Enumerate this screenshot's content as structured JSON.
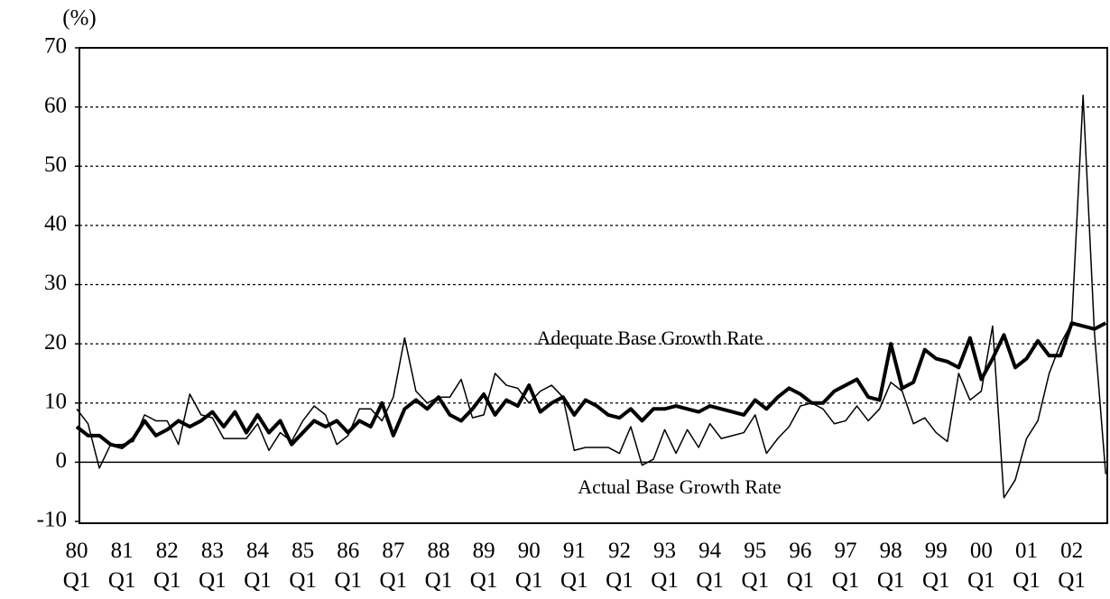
{
  "chart_data": {
    "type": "line",
    "y_unit": "(%)",
    "annotations": [
      "Adequate Base Growth Rate",
      "Actual Base Growth Rate"
    ],
    "categories": [
      "80\nQ1",
      null,
      null,
      null,
      "81\nQ1",
      null,
      null,
      null,
      "82\nQ1",
      null,
      null,
      null,
      "83\nQ1",
      null,
      null,
      null,
      "84\nQ1",
      null,
      null,
      null,
      "85\nQ1",
      null,
      null,
      null,
      "86\nQ1",
      null,
      null,
      null,
      "87\nQ1",
      null,
      null,
      null,
      "88\nQ1",
      null,
      null,
      null,
      "89\nQ1",
      null,
      null,
      null,
      "90\nQ1",
      null,
      null,
      null,
      "91\nQ1",
      null,
      null,
      null,
      "92\nQ1",
      null,
      null,
      null,
      "93\nQ1",
      null,
      null,
      null,
      "94\nQ1",
      null,
      null,
      null,
      "95\nQ1",
      null,
      null,
      null,
      "96\nQ1",
      null,
      null,
      null,
      "97\nQ1",
      null,
      null,
      null,
      "98\nQ1",
      null,
      null,
      null,
      "99\nQ1",
      null,
      null,
      null,
      "00\nQ1",
      null,
      null,
      null,
      "01\nQ1",
      null,
      null,
      null,
      "02\nQ1",
      null,
      null,
      null
    ],
    "series": [
      {
        "color": "#000000",
        "line_width": 4,
        "values": [
          6,
          4.5,
          4.5,
          3,
          2.5,
          4,
          7,
          4.5,
          5.5,
          7,
          6,
          7,
          8.5,
          6,
          8.5,
          5,
          8,
          5,
          7,
          3,
          5,
          7,
          6,
          7,
          5,
          7,
          6,
          10,
          4.5,
          9,
          10.5,
          9,
          11,
          8,
          7,
          9,
          11.5,
          8,
          10.5,
          9.5,
          13,
          8.5,
          10,
          11,
          8,
          10.5,
          9.5,
          8,
          7.5,
          9,
          7,
          9,
          9,
          9.5,
          9,
          8.5,
          9.5,
          9,
          8.5,
          8,
          10.5,
          9,
          11,
          12.5,
          11.5,
          10,
          10,
          12,
          13,
          14,
          11,
          10.5,
          20,
          12.5,
          13.5,
          19,
          17.5,
          17,
          16,
          21,
          14,
          17.5,
          21.5,
          16,
          17.5,
          20.5,
          18,
          18,
          23.5,
          23,
          22.5,
          23.5
        ]
      },
      {
        "color": "#000000",
        "line_width": 1.5,
        "values": [
          9,
          6.5,
          -1,
          3,
          3,
          3.5,
          8,
          7,
          7,
          3,
          11.5,
          8,
          7.5,
          4,
          4,
          4,
          6.5,
          2,
          5,
          3.5,
          7,
          9.5,
          8,
          3,
          4.5,
          9,
          9,
          7,
          11,
          21,
          12,
          10,
          11,
          11,
          14,
          7.5,
          8,
          15,
          13,
          12.5,
          10,
          12,
          13,
          11,
          2,
          2.5,
          2.5,
          2.5,
          1.5,
          6,
          -0.5,
          0.5,
          5.5,
          1.5,
          5.5,
          2.5,
          6.5,
          4,
          4.5,
          5,
          8,
          1.5,
          4,
          6,
          9.5,
          10,
          9,
          6.5,
          7,
          9.5,
          7,
          9,
          13.5,
          12,
          6.5,
          7.5,
          5,
          3.5,
          15,
          10.5,
          12,
          23,
          -6,
          -3,
          4,
          7,
          15,
          20,
          23.5,
          62,
          22,
          -2
        ]
      }
    ],
    "ylim": [
      -10,
      70
    ],
    "yticks": [
      -10,
      0,
      10,
      20,
      30,
      40,
      50,
      60,
      70
    ],
    "grid": true
  }
}
